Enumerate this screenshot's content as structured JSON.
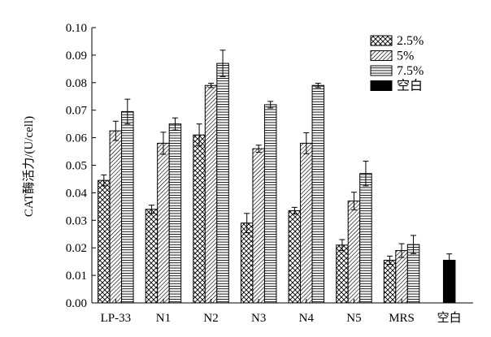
{
  "chart_data": {
    "type": "bar",
    "title": "",
    "xlabel": "",
    "ylabel": "CAT酶活力/(U/cell)",
    "ylim": [
      0,
      0.1
    ],
    "yticks": [
      "0.00",
      "0.01",
      "0.02",
      "0.03",
      "0.04",
      "0.05",
      "0.06",
      "0.07",
      "0.08",
      "0.09",
      "0.10"
    ],
    "grid": false,
    "legend_position": "top-right",
    "categories": [
      "LP-33",
      "N1",
      "N2",
      "N3",
      "N4",
      "N5",
      "MRS",
      "空白"
    ],
    "series": [
      {
        "name": "2.5%",
        "pattern": "crosshatch",
        "values": [
          0.0445,
          0.034,
          0.061,
          0.029,
          0.0335,
          0.021,
          0.0155,
          null
        ],
        "errors": [
          0.002,
          0.0015,
          0.004,
          0.0035,
          0.0012,
          0.002,
          0.0015,
          null
        ]
      },
      {
        "name": "5%",
        "pattern": "diagonal",
        "values": [
          0.0625,
          0.058,
          0.079,
          0.056,
          0.058,
          0.037,
          0.019,
          null
        ],
        "errors": [
          0.0035,
          0.004,
          0.0008,
          0.0013,
          0.0038,
          0.0032,
          0.0025,
          null
        ]
      },
      {
        "name": "7.5%",
        "pattern": "horizontal",
        "values": [
          0.0695,
          0.065,
          0.087,
          0.072,
          0.079,
          0.047,
          0.0212,
          null
        ],
        "errors": [
          0.0045,
          0.0022,
          0.0048,
          0.0012,
          0.0008,
          0.0045,
          0.0033,
          null
        ]
      },
      {
        "name": "空白",
        "pattern": "solid",
        "values": [
          null,
          null,
          null,
          null,
          null,
          null,
          null,
          0.0155
        ],
        "errors": [
          null,
          null,
          null,
          null,
          null,
          null,
          null,
          0.0023
        ]
      }
    ]
  }
}
